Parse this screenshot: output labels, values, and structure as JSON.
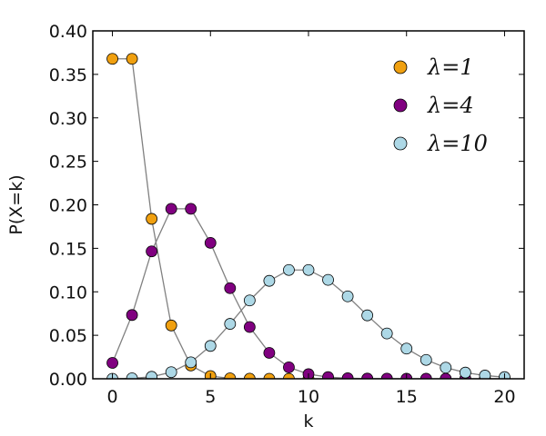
{
  "chart_data": {
    "type": "line",
    "xlabel": "k",
    "ylabel": "P(X=k)",
    "xlim": [
      -1,
      21
    ],
    "ylim": [
      0,
      0.4
    ],
    "xticks": [
      0,
      5,
      10,
      15,
      20
    ],
    "yticks": [
      0.0,
      0.05,
      0.1,
      0.15,
      0.2,
      0.25,
      0.3,
      0.35,
      0.4
    ],
    "ytick_labels": [
      "0.00",
      "0.05",
      "0.10",
      "0.15",
      "0.20",
      "0.25",
      "0.30",
      "0.35",
      "0.40"
    ],
    "grid": false,
    "legend_position": "top-right",
    "line_color": "#808080",
    "series": [
      {
        "name": "λ=1",
        "color": "#f0a010",
        "x": [
          0,
          1,
          2,
          3,
          4,
          5,
          6,
          7,
          8,
          9,
          10,
          11,
          12,
          13,
          14,
          15,
          16,
          17,
          18,
          19,
          20
        ],
        "values": [
          0.3679,
          0.3679,
          0.1839,
          0.0613,
          0.0153,
          0.0031,
          0.0005,
          0.0001,
          0.0,
          0.0,
          0.0,
          0.0,
          0.0,
          0.0,
          0.0,
          0.0,
          0.0,
          0.0,
          0.0,
          0.0,
          0.0
        ]
      },
      {
        "name": "λ=4",
        "color": "#800080",
        "x": [
          0,
          1,
          2,
          3,
          4,
          5,
          6,
          7,
          8,
          9,
          10,
          11,
          12,
          13,
          14,
          15,
          16,
          17,
          18,
          19,
          20
        ],
        "values": [
          0.0183,
          0.0733,
          0.1465,
          0.1954,
          0.1954,
          0.1563,
          0.1042,
          0.0595,
          0.0298,
          0.0132,
          0.0053,
          0.0019,
          0.0006,
          0.0002,
          0.0001,
          0.0,
          0.0,
          0.0,
          0.0,
          0.0,
          0.0
        ]
      },
      {
        "name": "λ=10",
        "color": "#add8e6",
        "x": [
          0,
          1,
          2,
          3,
          4,
          5,
          6,
          7,
          8,
          9,
          10,
          11,
          12,
          13,
          14,
          15,
          16,
          17,
          18,
          19,
          20
        ],
        "values": [
          0.0,
          0.0005,
          0.0023,
          0.0076,
          0.0189,
          0.0378,
          0.0631,
          0.0901,
          0.1126,
          0.1251,
          0.1251,
          0.1137,
          0.0948,
          0.0729,
          0.0521,
          0.0347,
          0.0217,
          0.0128,
          0.0071,
          0.0037,
          0.0019
        ]
      }
    ]
  }
}
